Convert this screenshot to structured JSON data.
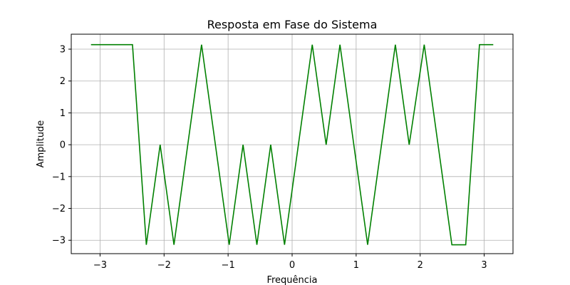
{
  "chart_data": {
    "type": "line",
    "title": "Resposta em Fase do Sistema",
    "xlabel": "Frequência",
    "ylabel": "Amplitude",
    "xlim": [
      -3.45,
      3.45
    ],
    "ylim": [
      -3.42,
      3.47
    ],
    "xticks": [
      -3,
      -2,
      -1,
      0,
      1,
      2,
      3
    ],
    "xtick_labels": [
      "−3",
      "−2",
      "−1",
      "0",
      "1",
      "2",
      "3"
    ],
    "yticks": [
      -3,
      -2,
      -1,
      0,
      1,
      2,
      3
    ],
    "ytick_labels": [
      "−3",
      "−2",
      "−1",
      "0",
      "1",
      "2",
      "3"
    ],
    "grid": true,
    "series": [
      {
        "color": "#008000",
        "x": [
          -3.1416,
          -2.4936,
          -2.2774,
          -2.0615,
          -1.8455,
          -1.4146,
          -0.9826,
          -0.7666,
          -0.5506,
          -0.3346,
          -0.1186,
          0.3144,
          0.5314,
          0.7474,
          1.1794,
          1.6124,
          1.8284,
          2.0634,
          2.4954,
          2.7114,
          2.9264,
          3.1416
        ],
        "y": [
          3.1416,
          3.1416,
          -3.1416,
          0,
          -3.1416,
          3.1416,
          -3.1416,
          0,
          -3.1416,
          0,
          -3.1416,
          3.1416,
          0,
          3.1416,
          -3.1416,
          3.1416,
          0,
          3.1416,
          -3.1416,
          -3.1416,
          3.1416,
          3.1416
        ]
      }
    ]
  }
}
